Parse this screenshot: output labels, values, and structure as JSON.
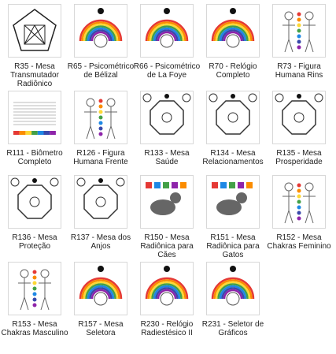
{
  "items": [
    {
      "caption": "R35 - Mesa Transmutador Radiônico"
    },
    {
      "caption": "R65 - Psicométrico de Bélizal"
    },
    {
      "caption": "R66 - Psicométrico de La Foye"
    },
    {
      "caption": "R70 - Relógio Completo"
    },
    {
      "caption": "R73 - Figura Humana Rins"
    },
    {
      "caption": "R111 - Biômetro Completo"
    },
    {
      "caption": "R126 - Figura Humana Frente"
    },
    {
      "caption": "R133 - Mesa Saúde"
    },
    {
      "caption": "R134 - Mesa Relacionamentos"
    },
    {
      "caption": "R135 - Mesa Prosperidade"
    },
    {
      "caption": "R136 - Mesa Proteção"
    },
    {
      "caption": "R137 - Mesa dos Anjos"
    },
    {
      "caption": "R150 - Mesa Radiônica para Cães"
    },
    {
      "caption": "R151 - Mesa Radiônica para Gatos"
    },
    {
      "caption": "R152 - Mesa Chakras Feminino"
    },
    {
      "caption": "R153 - Mesa Chakras Masculino"
    },
    {
      "caption": "R157 - Mesa Seletora"
    },
    {
      "caption": "R230 - Relógio Radiestésico II"
    },
    {
      "caption": "R231 - Seletor de Gráficos"
    }
  ]
}
